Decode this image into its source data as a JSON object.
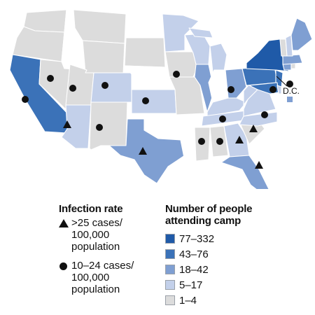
{
  "colors": {
    "77-332": "#1f5aa8",
    "43-76": "#3b72b8",
    "18-42": "#7f9fd2",
    "5-17": "#c3d0ea",
    "1-4": "#dcdcdc",
    "none": "#ffffff"
  },
  "map": {
    "dc_label": "D.C.",
    "states": {
      "WA": "1-4",
      "OR": "1-4",
      "CA": "43-76",
      "NV": "1-4",
      "ID": "none",
      "MT": "1-4",
      "WY": "1-4",
      "UT": "1-4",
      "AZ": "5-17",
      "NM": "1-4",
      "CO": "5-17",
      "ND": "none",
      "SD": "1-4",
      "NE": "none",
      "KS": "5-17",
      "OK": "none",
      "TX": "18-42",
      "MN": "5-17",
      "IA": "1-4",
      "MO": "1-4",
      "AR": "none",
      "LA": "none",
      "WI": "5-17",
      "IL": "18-42",
      "MI": "5-17",
      "IN": "none",
      "OH": "18-42",
      "KY": "5-17",
      "TN": "5-17",
      "MS": "1-4",
      "AL": "1-4",
      "GA": "5-17",
      "FL": "18-42",
      "SC": "1-4",
      "NC": "5-17",
      "VA": "5-17",
      "WV": "5-17",
      "PA": "43-76",
      "NY": "77-332",
      "NJ": "43-76",
      "MD": "43-76",
      "DE": "5-17",
      "CT": "18-42",
      "RI": "1-4",
      "MA": "18-42",
      "VT": "1-4",
      "NH": "5-17",
      "ME": "18-42",
      "AK": "none",
      "HI": "none",
      "DC": "18-42"
    },
    "markers": {
      "triangle": [
        "AZ",
        "TX",
        "SC",
        "GA",
        "FL"
      ],
      "circle": [
        "NV",
        "UT",
        "CA",
        "CO",
        "KS",
        "IA",
        "NM",
        "OH",
        "MD",
        "KY",
        "NC",
        "MS",
        "AL",
        "DC"
      ]
    }
  },
  "legend": {
    "rate_title": "Infection rate",
    "rate_items": [
      {
        "symbol": "triangle",
        "label": ">25 cases/\n100,000\npopulation"
      },
      {
        "symbol": "circle",
        "label": "10–24 cases/\n100,000\npopulation"
      }
    ],
    "camp_title": "Number of people\nattending camp",
    "camp_items": [
      {
        "key": "77-332",
        "label": "77–332"
      },
      {
        "key": "43-76",
        "label": "43–76"
      },
      {
        "key": "18-42",
        "label": "18–42"
      },
      {
        "key": "5-17",
        "label": "5–17"
      },
      {
        "key": "1-4",
        "label": "1–4"
      }
    ]
  }
}
